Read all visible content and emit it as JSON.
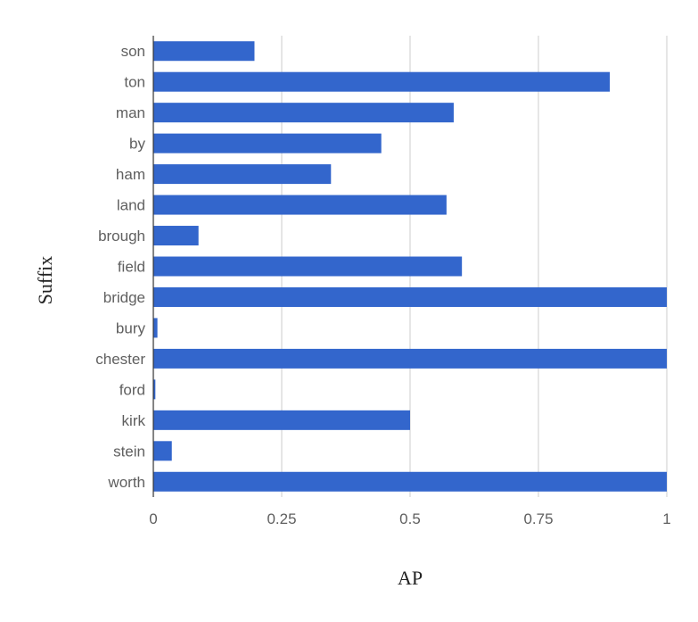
{
  "chart_data": {
    "type": "bar",
    "orientation": "horizontal",
    "xlabel": "AP",
    "ylabel": "Suffix",
    "xlim": [
      0,
      1
    ],
    "xticks": [
      0,
      0.25,
      0.5,
      0.75,
      1
    ],
    "xtick_labels": [
      "0",
      "0.25",
      "0.5",
      "0.75",
      "1"
    ],
    "grid": true,
    "legend": "none",
    "bar_color": "#3366cc",
    "categories": [
      "son",
      "ton",
      "man",
      "by",
      "ham",
      "land",
      "brough",
      "field",
      "bridge",
      "bury",
      "chester",
      "ford",
      "kirk",
      "stein",
      "worth"
    ],
    "values": [
      0.197,
      0.889,
      0.585,
      0.444,
      0.346,
      0.571,
      0.088,
      0.601,
      1.0,
      0.008,
      1.0,
      0.004,
      0.5,
      0.036,
      1.0
    ]
  }
}
